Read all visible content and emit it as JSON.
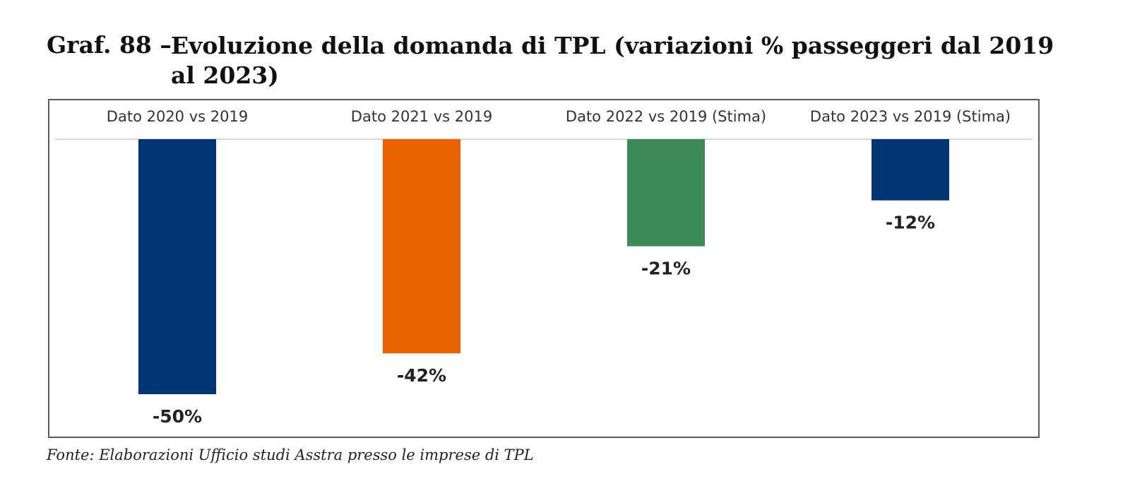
{
  "caption": {
    "label": "Graf. 88 –",
    "title": "Evoluzione della domanda di TPL (variazioni % passeggeri dal 2019 al 2023)"
  },
  "source": "Fonte: Elaborazioni Ufficio studi Asstra presso le imprese di TPL",
  "chart_data": {
    "type": "bar",
    "title": "Evoluzione della domanda di TPL (variazioni % passeggeri dal 2019 al 2023)",
    "categories": [
      "Dato 2020 vs 2019",
      "Dato 2021 vs 2019",
      "Dato 2022 vs 2019 (Stima)",
      "Dato 2023 vs 2019 (Stima)"
    ],
    "values": [
      -50,
      -42,
      -21,
      -12
    ],
    "data_labels": [
      "-50%",
      "-42%",
      "-21%",
      "-12%"
    ],
    "bar_colors": [
      "#003674",
      "#ea6200",
      "#3d8a58",
      "#003674"
    ],
    "category_axis_position": "top",
    "ylim": [
      -50,
      0
    ],
    "grid": false,
    "legend": "none"
  }
}
